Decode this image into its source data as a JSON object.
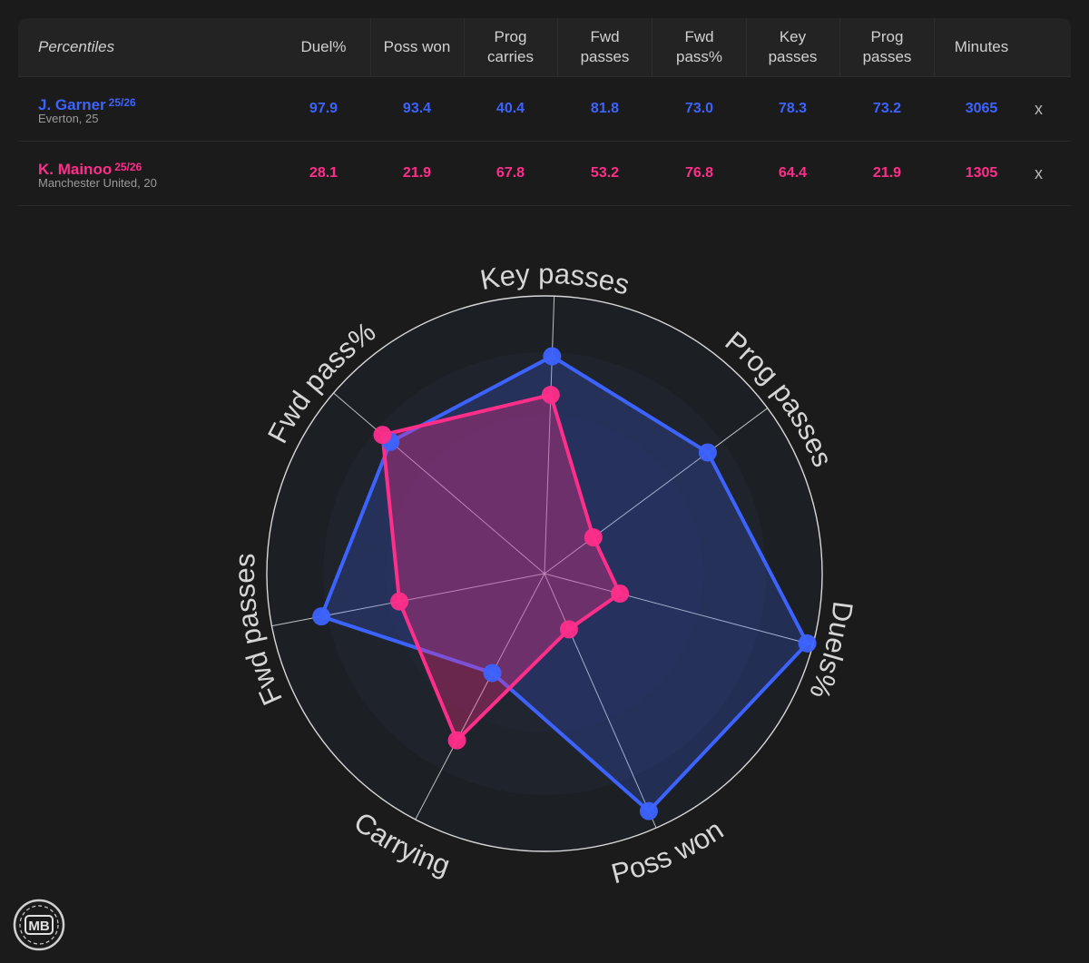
{
  "table": {
    "title": "Percentiles",
    "columns": [
      [
        "Duel%"
      ],
      [
        "Poss won"
      ],
      [
        "Prog",
        "carries"
      ],
      [
        "Fwd",
        "passes"
      ],
      [
        "Fwd",
        "pass%"
      ],
      [
        "Key",
        "passes"
      ],
      [
        "Prog",
        "passes"
      ],
      [
        "Minutes"
      ]
    ],
    "players": [
      {
        "name": "J. Garner",
        "season": "25/26",
        "team": "Everton, 25",
        "color": "#3d63ff",
        "values": [
          "97.9",
          "93.4",
          "40.4",
          "81.8",
          "73.0",
          "78.3",
          "73.2",
          "3065"
        ],
        "remove": "x"
      },
      {
        "name": "K. Mainoo",
        "season": "25/26",
        "team": "Manchester United, 20",
        "color": "#ff2e8a",
        "values": [
          "28.1",
          "21.9",
          "67.8",
          "53.2",
          "76.8",
          "64.4",
          "21.9",
          "1305"
        ],
        "remove": "x"
      }
    ]
  },
  "chart_data": {
    "type": "radar",
    "axes": [
      "Key passes",
      "Prog passes",
      "Duels%",
      "Poss won",
      "Carrying",
      "Fwd passes",
      "Fwd pass%"
    ],
    "range": [
      0,
      100
    ],
    "series": [
      {
        "name": "J. Garner",
        "color": "#3d63ff",
        "values": [
          78.3,
          73.2,
          97.9,
          93.4,
          40.4,
          81.8,
          73.0
        ]
      },
      {
        "name": "K. Mainoo",
        "color": "#ff2e8a",
        "values": [
          64.4,
          21.9,
          28.1,
          21.9,
          67.8,
          53.2,
          76.8
        ]
      }
    ]
  },
  "logo": {
    "text": "MB"
  }
}
